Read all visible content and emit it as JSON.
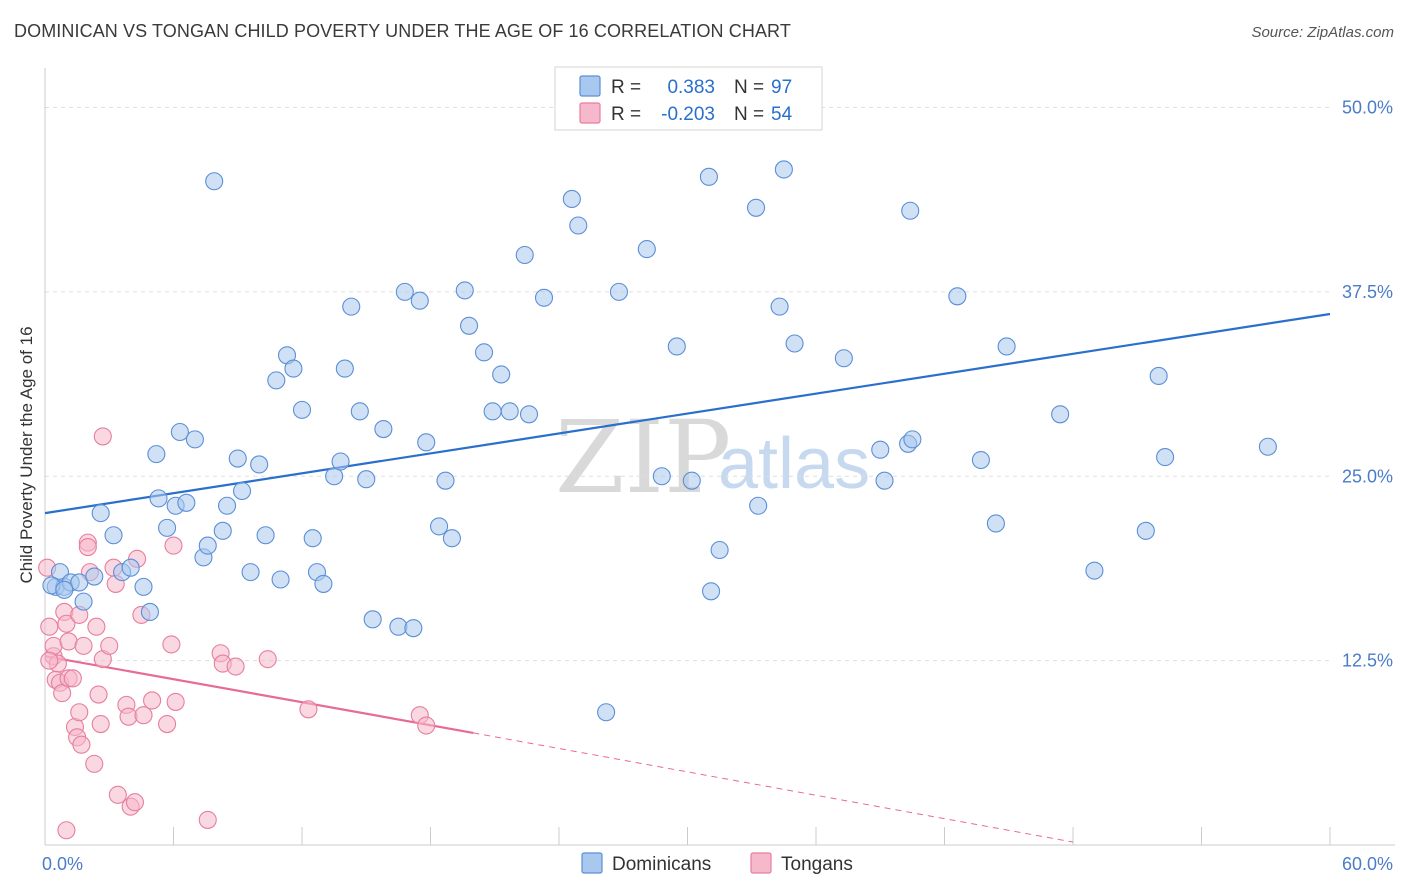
{
  "title": "DOMINICAN VS TONGAN CHILD POVERTY UNDER THE AGE OF 16 CORRELATION CHART",
  "source": "Source: ZipAtlas.com",
  "watermark": {
    "zip": "ZIP",
    "atlas": "atlas"
  },
  "colors": {
    "dominican_fill": "#a9c8ef",
    "dominican_stroke": "#5b8fd6",
    "dominican_line": "#2a6fcc",
    "tongan_fill": "#f6b8cb",
    "tongan_stroke": "#e77ea0",
    "tongan_line": "#e86a96",
    "grid": "#dddddd",
    "tick_text": "#4a7cc9"
  },
  "legend": {
    "rows": [
      {
        "r_label": "R =",
        "r_value": "0.383",
        "n_label": "N =",
        "n_value": "97"
      },
      {
        "r_label": "R =",
        "r_value": "-0.203",
        "n_label": "N =",
        "n_value": "54"
      }
    ]
  },
  "bottom_legend": [
    "Dominicans",
    "Tongans"
  ],
  "chart_data": {
    "type": "scatter",
    "title": "DOMINICAN VS TONGAN CHILD POVERTY UNDER THE AGE OF 16 CORRELATION CHART",
    "xlabel": "",
    "ylabel": "Child Poverty Under the Age of 16",
    "xlim": [
      0,
      60
    ],
    "ylim": [
      0,
      52
    ],
    "x_tick_labels": [
      "0.0%",
      "60.0%"
    ],
    "y_ticks": [
      12.5,
      25.0,
      37.5,
      50.0
    ],
    "y_tick_labels": [
      "12.5%",
      "25.0%",
      "37.5%",
      "50.0%"
    ],
    "series": [
      {
        "name": "Dominicans",
        "r": 0.383,
        "n": 97,
        "trend": {
          "x": [
            0,
            60
          ],
          "y": [
            22.5,
            36.0
          ],
          "dashed_from": null
        },
        "points": [
          [
            0.5,
            17.5
          ],
          [
            0.7,
            18.5
          ],
          [
            0.9,
            17.5
          ],
          [
            1.2,
            17.8
          ],
          [
            1.6,
            17.8
          ],
          [
            1.8,
            16.5
          ],
          [
            2.3,
            18.2
          ],
          [
            2.6,
            22.5
          ],
          [
            3.6,
            18.5
          ],
          [
            3.2,
            21.0
          ],
          [
            4.0,
            18.8
          ],
          [
            4.6,
            17.5
          ],
          [
            4.9,
            15.8
          ],
          [
            5.2,
            26.5
          ],
          [
            5.3,
            23.5
          ],
          [
            5.7,
            21.5
          ],
          [
            6.1,
            23.0
          ],
          [
            6.3,
            28.0
          ],
          [
            6.6,
            23.2
          ],
          [
            7.0,
            27.5
          ],
          [
            7.4,
            19.5
          ],
          [
            7.6,
            20.3
          ],
          [
            7.9,
            45.0
          ],
          [
            8.3,
            21.3
          ],
          [
            8.5,
            23.0
          ],
          [
            9.0,
            26.2
          ],
          [
            9.2,
            24.0
          ],
          [
            9.6,
            18.5
          ],
          [
            10.0,
            25.8
          ],
          [
            10.3,
            21.0
          ],
          [
            10.8,
            31.5
          ],
          [
            11.0,
            18.0
          ],
          [
            11.3,
            33.2
          ],
          [
            11.6,
            32.3
          ],
          [
            12.0,
            29.5
          ],
          [
            12.5,
            20.8
          ],
          [
            12.7,
            18.5
          ],
          [
            13.0,
            17.7
          ],
          [
            13.5,
            25.0
          ],
          [
            13.8,
            26.0
          ],
          [
            14.0,
            32.3
          ],
          [
            14.3,
            36.5
          ],
          [
            14.7,
            29.4
          ],
          [
            15.0,
            24.8
          ],
          [
            15.3,
            15.3
          ],
          [
            15.8,
            28.2
          ],
          [
            16.5,
            14.8
          ],
          [
            16.8,
            37.5
          ],
          [
            17.2,
            14.7
          ],
          [
            17.5,
            36.9
          ],
          [
            17.8,
            27.3
          ],
          [
            18.4,
            21.6
          ],
          [
            18.7,
            24.7
          ],
          [
            19.0,
            20.8
          ],
          [
            19.6,
            37.6
          ],
          [
            19.8,
            35.2
          ],
          [
            20.5,
            33.4
          ],
          [
            20.9,
            29.4
          ],
          [
            21.3,
            31.9
          ],
          [
            21.7,
            29.4
          ],
          [
            22.4,
            40.0
          ],
          [
            22.6,
            29.2
          ],
          [
            23.3,
            37.1
          ],
          [
            24.6,
            43.8
          ],
          [
            24.9,
            42.0
          ],
          [
            26.8,
            37.5
          ],
          [
            26.2,
            9.0
          ],
          [
            28.1,
            40.4
          ],
          [
            28.8,
            25.0
          ],
          [
            29.5,
            33.8
          ],
          [
            30.2,
            24.7
          ],
          [
            31.0,
            45.3
          ],
          [
            31.1,
            17.2
          ],
          [
            31.5,
            20.0
          ],
          [
            33.3,
            23.0
          ],
          [
            33.2,
            43.2
          ],
          [
            34.3,
            36.5
          ],
          [
            34.5,
            45.8
          ],
          [
            35.0,
            34.0
          ],
          [
            37.3,
            33.0
          ],
          [
            39.0,
            26.8
          ],
          [
            39.2,
            24.7
          ],
          [
            40.3,
            27.2
          ],
          [
            40.5,
            27.5
          ],
          [
            40.4,
            43.0
          ],
          [
            42.6,
            37.2
          ],
          [
            43.7,
            26.1
          ],
          [
            44.4,
            21.8
          ],
          [
            44.9,
            33.8
          ],
          [
            47.4,
            29.2
          ],
          [
            49.0,
            18.6
          ],
          [
            51.4,
            21.3
          ],
          [
            52.0,
            31.8
          ],
          [
            52.3,
            26.3
          ],
          [
            57.1,
            27.0
          ],
          [
            0.3,
            17.6
          ],
          [
            0.9,
            17.3
          ]
        ]
      },
      {
        "name": "Tongans",
        "r": -0.203,
        "n": 54,
        "trend": {
          "x": [
            0,
            20
          ],
          "y": [
            12.8,
            7.6
          ],
          "dashed_to": [
            48,
            0.2
          ]
        },
        "points": [
          [
            0.1,
            18.8
          ],
          [
            0.2,
            14.8
          ],
          [
            0.4,
            12.8
          ],
          [
            0.4,
            13.5
          ],
          [
            0.6,
            12.3
          ],
          [
            0.5,
            11.2
          ],
          [
            0.7,
            11.0
          ],
          [
            0.8,
            10.3
          ],
          [
            0.9,
            15.8
          ],
          [
            1.0,
            15.0
          ],
          [
            1.1,
            11.3
          ],
          [
            1.1,
            13.8
          ],
          [
            1.3,
            11.3
          ],
          [
            1.4,
            8.0
          ],
          [
            1.5,
            7.3
          ],
          [
            1.6,
            9.0
          ],
          [
            1.6,
            15.6
          ],
          [
            1.7,
            6.8
          ],
          [
            1.8,
            13.5
          ],
          [
            2.0,
            20.5
          ],
          [
            2.0,
            20.2
          ],
          [
            2.1,
            18.5
          ],
          [
            2.3,
            5.5
          ],
          [
            2.4,
            14.8
          ],
          [
            2.5,
            10.2
          ],
          [
            2.6,
            8.2
          ],
          [
            2.7,
            27.7
          ],
          [
            2.7,
            12.6
          ],
          [
            3.0,
            13.5
          ],
          [
            3.2,
            18.8
          ],
          [
            3.3,
            17.7
          ],
          [
            3.4,
            3.4
          ],
          [
            3.8,
            9.5
          ],
          [
            3.9,
            8.7
          ],
          [
            4.0,
            2.6
          ],
          [
            4.2,
            2.9
          ],
          [
            4.3,
            19.4
          ],
          [
            4.5,
            15.6
          ],
          [
            4.6,
            8.8
          ],
          [
            5.0,
            9.8
          ],
          [
            5.7,
            8.2
          ],
          [
            5.9,
            13.6
          ],
          [
            6.0,
            20.3
          ],
          [
            6.1,
            9.7
          ],
          [
            7.6,
            1.7
          ],
          [
            8.2,
            13.0
          ],
          [
            8.3,
            12.3
          ],
          [
            8.9,
            12.1
          ],
          [
            10.4,
            12.6
          ],
          [
            12.3,
            9.2
          ],
          [
            17.5,
            8.8
          ],
          [
            17.8,
            8.1
          ],
          [
            1.0,
            1.0
          ],
          [
            0.2,
            12.5
          ]
        ]
      }
    ]
  }
}
